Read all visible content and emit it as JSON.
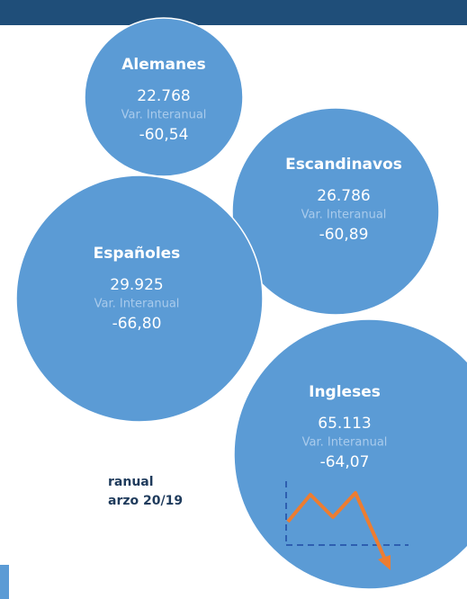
{
  "groups": [
    {
      "name": "Alemanes",
      "value": "22.768",
      "change_label": "Var. Interanual",
      "change": "-60,54"
    },
    {
      "name": "Escandinavos",
      "value": "26.786",
      "change_label": "Var. Interanual",
      "change": "-60,89"
    },
    {
      "name": "Españoles",
      "value": "29.925",
      "change_label": "Var. Interanual",
      "change": "-66,80"
    },
    {
      "name": "Ingleses",
      "value": "65.113",
      "change_label": "Var. Interanual",
      "change": "-64,07"
    }
  ],
  "side_text": [
    "ranual",
    "arzo 20/19"
  ]
}
